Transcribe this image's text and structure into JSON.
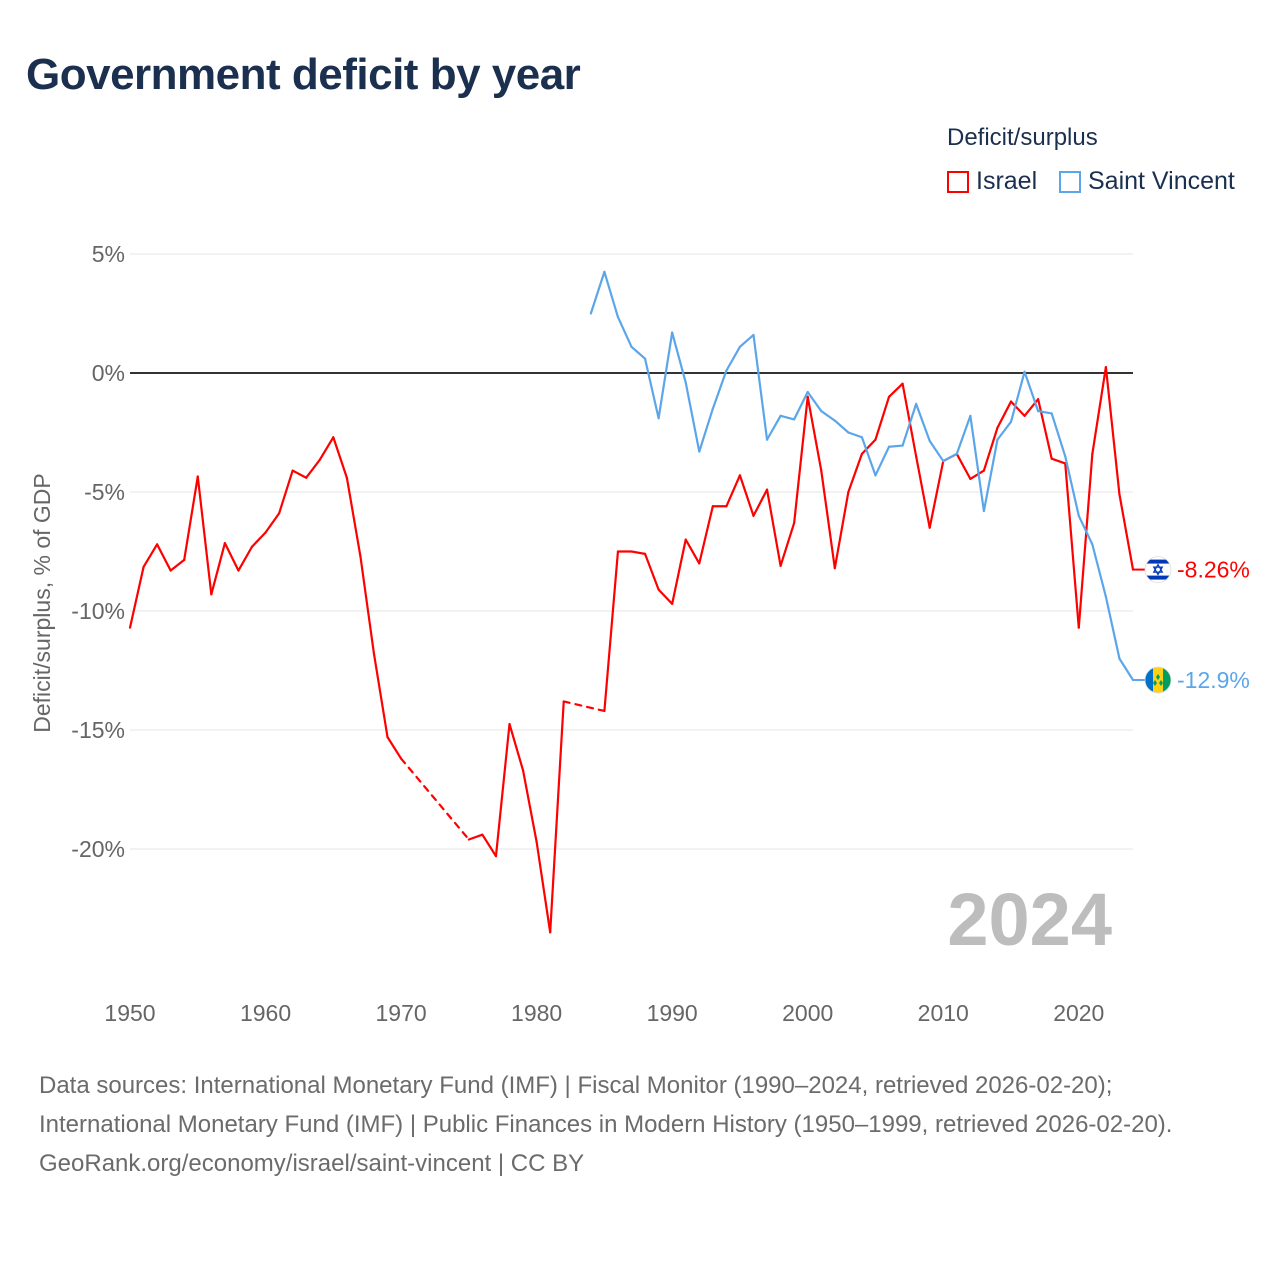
{
  "title": "Government deficit by year",
  "legend": {
    "title": "Deficit/surplus",
    "items": [
      {
        "label": "Israel",
        "color": "#ff0000"
      },
      {
        "label": "Saint Vincent",
        "color": "#5ba6ea"
      }
    ]
  },
  "year_overlay": "2024",
  "footer": {
    "sources": "Data sources: International Monetary Fund (IMF) | Fiscal Monitor (1990–2024, retrieved 2026-02-20); International Monetary Fund (IMF) | Public Finances in Modern History (1950–1999, retrieved 2026-02-20).",
    "credit": "GeoRank.org/economy/israel/saint-vincent | CC BY"
  },
  "chart_data": {
    "type": "line",
    "title": "Government deficit by year",
    "xlabel": "",
    "ylabel": "Deficit/surplus, % of GDP",
    "xlim": [
      1950,
      2024
    ],
    "ylim": [
      -25,
      5
    ],
    "x_ticks": [
      "1950",
      "1960",
      "1970",
      "1980",
      "1990",
      "2000",
      "2010",
      "2020"
    ],
    "y_ticks": [
      {
        "value": 5,
        "label": "5%"
      },
      {
        "value": 0,
        "label": "0%"
      },
      {
        "value": -5,
        "label": "-5%"
      },
      {
        "value": -10,
        "label": "-10%"
      },
      {
        "value": -15,
        "label": "-15%"
      },
      {
        "value": -20,
        "label": "-20%"
      }
    ],
    "grid": true,
    "legend_position": "top-right",
    "series": [
      {
        "name": "Israel",
        "color": "#ff0000",
        "end_label": "-8.26%",
        "flag": "israel-flag",
        "points": [
          [
            1950,
            -10.7
          ],
          [
            1951,
            -8.15
          ],
          [
            1952,
            -7.2
          ],
          [
            1953,
            -8.3
          ],
          [
            1954,
            -7.85
          ],
          [
            1955,
            -4.35
          ],
          [
            1956,
            -9.3
          ],
          [
            1957,
            -7.15
          ],
          [
            1958,
            -8.3
          ],
          [
            1959,
            -7.3
          ],
          [
            1960,
            -6.7
          ],
          [
            1961,
            -5.9
          ],
          [
            1962,
            -4.1
          ],
          [
            1963,
            -4.4
          ],
          [
            1964,
            -3.65
          ],
          [
            1965,
            -2.7
          ],
          [
            1966,
            -4.4
          ],
          [
            1967,
            -7.7
          ],
          [
            1968,
            -11.8
          ],
          [
            1969,
            -15.3
          ],
          [
            1970,
            -16.2
          ],
          [
            1975,
            -19.6
          ],
          [
            1976,
            -19.4
          ],
          [
            1977,
            -20.3
          ],
          [
            1978,
            -14.75
          ],
          [
            1979,
            -16.7
          ],
          [
            1980,
            -19.7
          ],
          [
            1981,
            -23.5
          ],
          [
            1982,
            -13.8
          ],
          [
            1985,
            -14.2
          ],
          [
            1986,
            -7.5
          ],
          [
            1987,
            -7.5
          ],
          [
            1988,
            -7.6
          ],
          [
            1989,
            -9.1
          ],
          [
            1990,
            -9.7
          ],
          [
            1991,
            -7.0
          ],
          [
            1992,
            -8.0
          ],
          [
            1993,
            -5.6
          ],
          [
            1994,
            -5.6
          ],
          [
            1995,
            -4.3
          ],
          [
            1996,
            -6.0
          ],
          [
            1997,
            -4.9
          ],
          [
            1998,
            -8.1
          ],
          [
            1999,
            -6.3
          ],
          [
            2000,
            -1.0
          ],
          [
            2001,
            -4.1
          ],
          [
            2002,
            -8.2
          ],
          [
            2003,
            -5.0
          ],
          [
            2004,
            -3.4
          ],
          [
            2005,
            -2.8
          ],
          [
            2006,
            -1.0
          ],
          [
            2007,
            -0.45
          ],
          [
            2008,
            -3.5
          ],
          [
            2009,
            -6.5
          ],
          [
            2010,
            -3.7
          ],
          [
            2011,
            -3.4
          ],
          [
            2012,
            -4.45
          ],
          [
            2013,
            -4.1
          ],
          [
            2014,
            -2.3
          ],
          [
            2015,
            -1.2
          ],
          [
            2016,
            -1.8
          ],
          [
            2017,
            -1.1
          ],
          [
            2018,
            -3.6
          ],
          [
            2019,
            -3.8
          ],
          [
            2020,
            -10.7
          ],
          [
            2021,
            -3.4
          ],
          [
            2022,
            0.25
          ],
          [
            2023,
            -5.1
          ],
          [
            2024,
            -8.26
          ]
        ]
      },
      {
        "name": "Saint Vincent",
        "color": "#5ba6ea",
        "end_label": "-12.9%",
        "flag": "saint-vincent-flag",
        "points": [
          [
            1984,
            2.5
          ],
          [
            1985,
            4.25
          ],
          [
            1986,
            2.35
          ],
          [
            1987,
            1.1
          ],
          [
            1988,
            0.6
          ],
          [
            1989,
            -1.9
          ],
          [
            1990,
            1.7
          ],
          [
            1991,
            -0.4
          ],
          [
            1992,
            -3.3
          ],
          [
            1993,
            -1.5
          ],
          [
            1994,
            0.1
          ],
          [
            1995,
            1.1
          ],
          [
            1996,
            1.6
          ],
          [
            1997,
            -2.8
          ],
          [
            1998,
            -1.8
          ],
          [
            1999,
            -1.95
          ],
          [
            2000,
            -0.8
          ],
          [
            2001,
            -1.6
          ],
          [
            2002,
            -2.0
          ],
          [
            2003,
            -2.5
          ],
          [
            2004,
            -2.7
          ],
          [
            2005,
            -4.3
          ],
          [
            2006,
            -3.1
          ],
          [
            2007,
            -3.05
          ],
          [
            2008,
            -1.3
          ],
          [
            2009,
            -2.85
          ],
          [
            2010,
            -3.7
          ],
          [
            2011,
            -3.4
          ],
          [
            2012,
            -1.8
          ],
          [
            2013,
            -5.8
          ],
          [
            2014,
            -2.8
          ],
          [
            2015,
            -2.05
          ],
          [
            2016,
            0.05
          ],
          [
            2017,
            -1.6
          ],
          [
            2018,
            -1.7
          ],
          [
            2019,
            -3.5
          ],
          [
            2020,
            -6.0
          ],
          [
            2021,
            -7.2
          ],
          [
            2022,
            -9.4
          ],
          [
            2023,
            -12.0
          ],
          [
            2024,
            -12.9
          ]
        ]
      }
    ]
  }
}
